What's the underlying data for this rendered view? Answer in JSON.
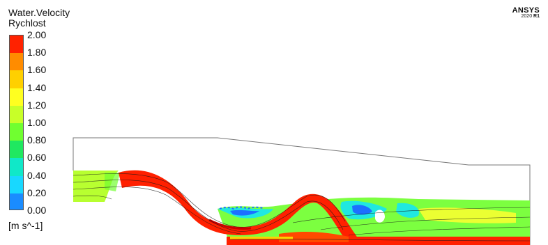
{
  "legend": {
    "variable": "Water.Velocity",
    "subtitle": "Rychlost",
    "unit": "[m s^-1]",
    "ticks": [
      "2.00",
      "1.80",
      "1.60",
      "1.40",
      "1.20",
      "1.00",
      "0.80",
      "0.60",
      "0.40",
      "0.20",
      "0.00"
    ],
    "colors": [
      "#ff2200",
      "#ff8c00",
      "#ffd000",
      "#ffff20",
      "#c8ff28",
      "#70ff30",
      "#20e860",
      "#10e8c8",
      "#18d8ff",
      "#1a8cff",
      "#1444ff"
    ]
  },
  "brand": {
    "name": "ANSYS",
    "version": "2020",
    "release": "R1"
  },
  "flow_colors": {
    "inlet": "#b8ff30",
    "jet": "#ff2000",
    "jet_dark": "#cc0000",
    "wake_green": "#7cff40",
    "wake_cyan": "#20e8e0",
    "wake_blue": "#1c70ff",
    "streamline": "#1a1a1a"
  }
}
